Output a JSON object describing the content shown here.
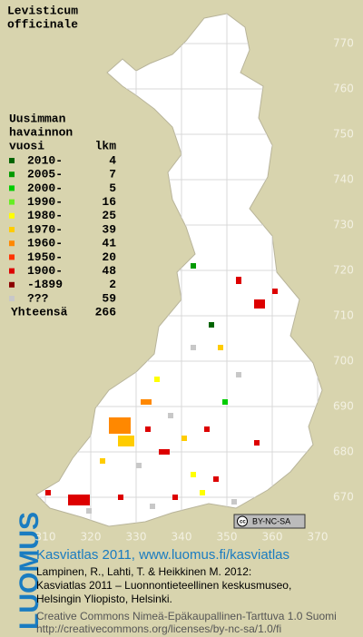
{
  "title": [
    "Levisticum",
    "officinale"
  ],
  "legend": {
    "header": [
      "Uusimman",
      "havainnon",
      "vuosi"
    ],
    "count_header": "lkm",
    "rows": [
      {
        "label": "2010-",
        "count": 4,
        "color": "#006400"
      },
      {
        "label": "2005-",
        "count": 7,
        "color": "#009a00"
      },
      {
        "label": "2000-",
        "count": 5,
        "color": "#00cc00"
      },
      {
        "label": "1990-",
        "count": 16,
        "color": "#66ee22"
      },
      {
        "label": "1980-",
        "count": 25,
        "color": "#ffff00"
      },
      {
        "label": "1970-",
        "count": 39,
        "color": "#ffcc00"
      },
      {
        "label": "1960-",
        "count": 41,
        "color": "#ff8800"
      },
      {
        "label": "1950-",
        "count": 20,
        "color": "#ff3300"
      },
      {
        "label": "1900-",
        "count": 48,
        "color": "#dd0000"
      },
      {
        "label": "-1899",
        "count": 2,
        "color": "#8b0000"
      },
      {
        "label": "???",
        "count": 59,
        "color": "#c8c8c8"
      }
    ],
    "total_label": "Yhteensä",
    "total": 266
  },
  "grid": {
    "yticks": [
      770,
      760,
      750,
      740,
      730,
      720,
      710,
      700,
      690,
      680,
      670
    ],
    "xticks": [
      310,
      320,
      330,
      340,
      350,
      360,
      370
    ]
  },
  "badge": "BY-NC-SA",
  "footer": {
    "logo": "LUOMUS",
    "link": "Kasviatlas 2011, www.luomus.fi/kasviatlas",
    "citation": [
      "Lampinen, R., Lahti, T. & Heikkinen M. 2012:",
      "Kasviatlas 2011 – Luonnontieteellinen keskusmuseo,",
      "Helsingin Yliopisto, Helsinki."
    ],
    "license": [
      "Creative Commons Nimeä-Epäkaupallinen-Tarttuva 1.0 Suomi",
      "http://creativecommons.org/licenses/by-nc-sa/1.0/fi"
    ]
  }
}
